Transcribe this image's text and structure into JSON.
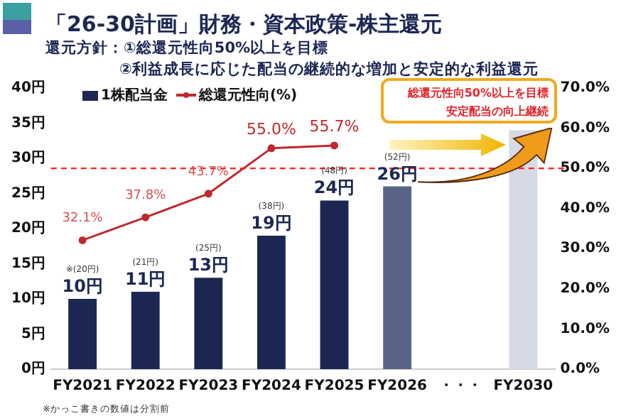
{
  "chart_data": {
    "type": "bar",
    "title": "「26-30計画」財務・資本政策-株主還元",
    "subtitle": "還元方針：①総還元性向50%以上を目標\n②利益成長に応じた配当の継続的な増加と安定的な利益還元",
    "categories": [
      "FY2021",
      "FY2022",
      "FY2023",
      "FY2024",
      "FY2025",
      "FY2026",
      "・・・",
      "FY2030"
    ],
    "series": [
      {
        "name": "1株配当金",
        "color": "#1c2753",
        "colors": [
          "#1c2753",
          "#1c2753",
          "#1c2753",
          "#1c2753",
          "#1c2753",
          "#5a6488",
          "#1c2753",
          "#d5dae5"
        ],
        "values": [
          10,
          11,
          13,
          19,
          24,
          26,
          null,
          34
        ],
        "value_labels": [
          "10円",
          "11円",
          "13円",
          "19円",
          "24円",
          "26円",
          null,
          null
        ]
      },
      {
        "name": "総還元性向(%)",
        "type": "line",
        "axis": "y2",
        "color": "#c0282d",
        "values": [
          32.1,
          37.8,
          43.7,
          55.0,
          55.7,
          null,
          null,
          null
        ],
        "value_labels": [
          "32.1%",
          "37.8%",
          "43.7%",
          "55.0%",
          "55.7%",
          null,
          null,
          null
        ]
      }
    ],
    "ylim": [
      0,
      40
    ],
    "yticks": [
      {
        "value": 0,
        "label": "0円"
      },
      {
        "value": 5,
        "label": "5円"
      },
      {
        "value": 10,
        "label": "10円"
      },
      {
        "value": 15,
        "label": "15円"
      },
      {
        "value": 20,
        "label": "20円"
      },
      {
        "value": 25,
        "label": "25円"
      },
      {
        "value": 30,
        "label": "30円"
      },
      {
        "value": 35,
        "label": "35円"
      },
      {
        "value": 40,
        "label": "40円"
      }
    ],
    "y2lim": [
      0,
      70
    ],
    "y2ticks": [
      {
        "value": 0,
        "label": "0.0%"
      },
      {
        "value": 10,
        "label": "10.0%"
      },
      {
        "value": 20,
        "label": "20.0%"
      },
      {
        "value": 30,
        "label": "30.0%"
      },
      {
        "value": 40,
        "label": "40.0%"
      },
      {
        "value": 50,
        "label": "50.0%"
      },
      {
        "value": 60,
        "label": "60.0%"
      },
      {
        "value": 70,
        "label": "70.0%"
      }
    ],
    "ref_lines": [
      {
        "axis": "y2",
        "value": 50,
        "color": "#ff2020",
        "line_style": "dashed"
      }
    ],
    "annotations": [
      "総還元性向50%以上を目標",
      "安定配当の向上継続",
      "※かっこ書きの数値は分割前",
      "※(20円)",
      "(21円)",
      "(25円)",
      "(38円)",
      "(48円)",
      "(52円)"
    ],
    "legend": "top left",
    "marker": "circle",
    "grid": false
  }
}
